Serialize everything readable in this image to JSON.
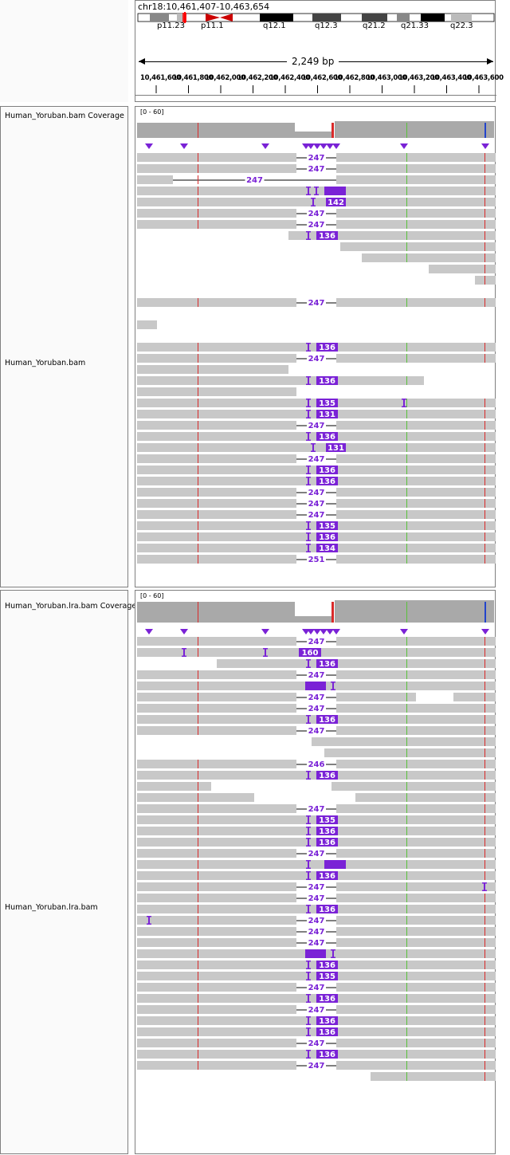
{
  "header": {
    "locus": "chr18:10,461,407-10,463,654",
    "bands": [
      "p11.23",
      "p11.1",
      "q12.1",
      "q12.3",
      "q21.2",
      "q21.33",
      "q22.3"
    ],
    "scale_label": "2,249 bp",
    "ticks": [
      "10,461,600",
      "10,461,800",
      "10,462,000",
      "10,462,200",
      "10,462,400",
      "10,462,600",
      "10,462,800",
      "10,463,000",
      "10,463,200",
      "10,463,400",
      "10,463,600"
    ]
  },
  "tracks": [
    {
      "coverage_name": "Human_Yoruban.bam Coverage",
      "alignment_name": "Human_Yoruban.bam",
      "data_range": "[0 - 60]"
    },
    {
      "coverage_name": "Human_Yoruban.lra.bam Coverage",
      "alignment_name": "Human_Yoruban.lra.bam",
      "data_range": "[0 - 60]"
    }
  ],
  "colors": {
    "read": "#c8c8c8",
    "coverage": "#a9a9a9",
    "insertion": "#7a22d6",
    "mismatch_red": "#d92a2a",
    "mismatch_green": "#59c23c",
    "mismatch_blue": "#2244cc"
  },
  "reads1": [
    {
      "s": 0,
      "e": 200,
      "label": "247",
      "ge": 250
    },
    {
      "s": 0,
      "e": 200,
      "label": "247",
      "ge": 250
    },
    {
      "s": 0,
      "e": 45,
      "label": "247",
      "ge": 250,
      "s2": 146
    },
    {
      "s": 0,
      "e": 450,
      "box": [
        235,
        262
      ],
      "ins": [
        214,
        224
      ]
    },
    {
      "s": 0,
      "e": 450,
      "label": "142",
      "box": [
        237,
        262
      ],
      "ins": [
        220
      ]
    },
    {
      "s": 0,
      "e": 200,
      "label": "247",
      "ge": 250
    },
    {
      "s": 0,
      "e": 200,
      "label": "247",
      "ge": 250
    },
    {
      "s": 190,
      "e": 450,
      "label": "136",
      "box": [
        225,
        252
      ],
      "ins": [
        214
      ]
    },
    {
      "s": 255,
      "e": 450
    },
    {
      "s": 282,
      "e": 450
    },
    {
      "s": 366,
      "e": 450
    },
    {
      "s": 424,
      "e": 450
    },
    null,
    {
      "s": 0,
      "e": 200,
      "label": "247",
      "ge": 250
    },
    null,
    {
      "s": 0,
      "e": 25
    },
    null,
    {
      "s": 0,
      "e": 450,
      "label": "136",
      "box": [
        225,
        252
      ],
      "ins": [
        214
      ]
    },
    {
      "s": 0,
      "e": 200,
      "label": "247",
      "ge": 250
    },
    {
      "s": 0,
      "e": 190
    },
    {
      "s": 0,
      "e": 360,
      "label": "136",
      "box": [
        225,
        252
      ],
      "ins": [
        214
      ]
    },
    {
      "s": 0,
      "e": 200
    },
    {
      "s": 0,
      "e": 450,
      "label": "135",
      "box": [
        225,
        252
      ],
      "ins": [
        214,
        334
      ]
    },
    {
      "s": 0,
      "e": 450,
      "label": "131",
      "box": [
        225,
        252
      ],
      "ins": [
        214
      ]
    },
    {
      "s": 0,
      "e": 200,
      "label": "247",
      "ge": 250
    },
    {
      "s": 0,
      "e": 450,
      "label": "136",
      "box": [
        225,
        252
      ],
      "ins": [
        214
      ]
    },
    {
      "s": 0,
      "e": 450,
      "label": "131",
      "box": [
        237,
        262
      ],
      "ins": [
        220
      ]
    },
    {
      "s": 0,
      "e": 200,
      "label": "247",
      "ge": 250
    },
    {
      "s": 0,
      "e": 450,
      "label": "136",
      "box": [
        225,
        252
      ],
      "ins": [
        214
      ]
    },
    {
      "s": 0,
      "e": 450,
      "label": "136",
      "box": [
        225,
        252
      ],
      "ins": [
        214
      ]
    },
    {
      "s": 0,
      "e": 200,
      "label": "247",
      "ge": 250
    },
    {
      "s": 0,
      "e": 200,
      "label": "247",
      "ge": 250
    },
    {
      "s": 0,
      "e": 200,
      "label": "247",
      "ge": 250
    },
    {
      "s": 0,
      "e": 450,
      "label": "135",
      "box": [
        225,
        252
      ],
      "ins": [
        214
      ]
    },
    {
      "s": 0,
      "e": 450,
      "label": "136",
      "box": [
        225,
        252
      ],
      "ins": [
        214
      ]
    },
    {
      "s": 0,
      "e": 450,
      "label": "134",
      "box": [
        225,
        252
      ],
      "ins": [
        214
      ]
    },
    {
      "s": 0,
      "e": 200,
      "label": "251",
      "ge": 250
    }
  ],
  "reads2": [
    {
      "s": 0,
      "e": 200,
      "label": "247",
      "ge": 250
    },
    {
      "s": 0,
      "e": 450,
      "label": "160",
      "box": [
        203,
        231
      ],
      "ins": [
        58,
        160
      ]
    },
    {
      "s": 100,
      "e": 450,
      "label": "136",
      "box": [
        225,
        252
      ],
      "ins": [
        214
      ]
    },
    {
      "s": 0,
      "e": 200,
      "label": "247",
      "ge": 250
    },
    {
      "s": 0,
      "e": 450,
      "box": [
        211,
        237
      ],
      "ins": [
        245
      ]
    },
    {
      "s": 0,
      "e": 200,
      "label": "247",
      "ge": 250,
      "s2": 250,
      "e2": 350,
      "s3": 397
    },
    {
      "s": 0,
      "e": 200,
      "label": "247",
      "ge": 250
    },
    {
      "s": 0,
      "e": 450,
      "label": "136",
      "box": [
        225,
        252
      ],
      "ins": [
        214
      ]
    },
    {
      "s": 0,
      "e": 200,
      "label": "247",
      "ge": 250
    },
    {
      "s": 219,
      "e": 450
    },
    {
      "s": 235,
      "e": 450
    },
    {
      "s": 0,
      "e": 200,
      "label": "246",
      "ge": 250
    },
    {
      "s": 0,
      "e": 450,
      "label": "136",
      "box": [
        225,
        252
      ],
      "ins": [
        214
      ]
    },
    {
      "s": 0,
      "e": 93,
      "s2": 244
    },
    {
      "s": 0,
      "e": 147,
      "s2": 274
    },
    {
      "s": 0,
      "e": 200,
      "label": "247",
      "ge": 250
    },
    {
      "s": 0,
      "e": 450,
      "label": "135",
      "box": [
        225,
        252
      ],
      "ins": [
        214
      ]
    },
    {
      "s": 0,
      "e": 450,
      "label": "136",
      "box": [
        225,
        252
      ],
      "ins": [
        214
      ]
    },
    {
      "s": 0,
      "e": 450,
      "label": "136",
      "box": [
        225,
        252
      ],
      "ins": [
        214
      ]
    },
    {
      "s": 0,
      "e": 200,
      "label": "247",
      "ge": 250
    },
    {
      "s": 0,
      "e": 450,
      "box": [
        235,
        262
      ],
      "ins": [
        214
      ]
    },
    {
      "s": 0,
      "e": 450,
      "label": "136",
      "box": [
        225,
        252
      ],
      "ins": [
        214
      ]
    },
    {
      "s": 0,
      "e": 200,
      "label": "247",
      "ge": 250,
      "ins2": [
        435
      ]
    },
    {
      "s": 0,
      "e": 200,
      "label": "247",
      "ge": 250
    },
    {
      "s": 0,
      "e": 450,
      "label": "136",
      "box": [
        225,
        252
      ],
      "ins": [
        214
      ]
    },
    {
      "s": 0,
      "e": 200,
      "label": "247",
      "ge": 250,
      "ins2": [
        14
      ]
    },
    {
      "s": 0,
      "e": 200,
      "label": "247",
      "ge": 250
    },
    {
      "s": 0,
      "e": 200,
      "label": "247",
      "ge": 250
    },
    {
      "s": 0,
      "e": 450,
      "box": [
        211,
        237
      ],
      "ins": [
        245
      ]
    },
    {
      "s": 0,
      "e": 450,
      "label": "136",
      "box": [
        225,
        252
      ],
      "ins": [
        214
      ]
    },
    {
      "s": 0,
      "e": 450,
      "label": "135",
      "box": [
        225,
        252
      ],
      "ins": [
        214
      ]
    },
    {
      "s": 0,
      "e": 200,
      "label": "247",
      "ge": 250
    },
    {
      "s": 0,
      "e": 450,
      "label": "136",
      "box": [
        225,
        252
      ],
      "ins": [
        214
      ]
    },
    {
      "s": 0,
      "e": 200,
      "label": "247",
      "ge": 250
    },
    {
      "s": 0,
      "e": 450,
      "label": "136",
      "box": [
        225,
        252
      ],
      "ins": [
        214
      ]
    },
    {
      "s": 0,
      "e": 450,
      "label": "136",
      "box": [
        225,
        252
      ],
      "ins": [
        214
      ]
    },
    {
      "s": 0,
      "e": 200,
      "label": "247",
      "ge": 250
    },
    {
      "s": 0,
      "e": 450,
      "label": "136",
      "box": [
        225,
        252
      ],
      "ins": [
        214
      ]
    },
    {
      "s": 0,
      "e": 200,
      "label": "247",
      "ge": 250
    },
    {
      "s": 293,
      "e": 450
    }
  ]
}
